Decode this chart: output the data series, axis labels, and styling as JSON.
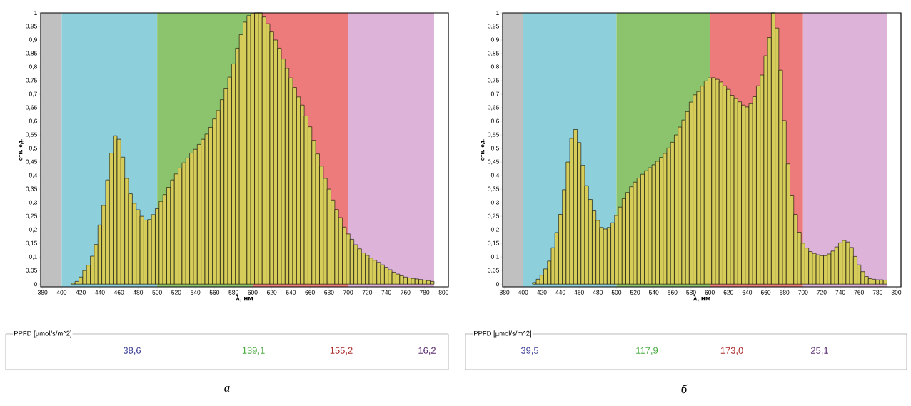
{
  "chart_data": [
    {
      "type": "histogram",
      "xlabel": "λ, нм",
      "ylabel": "отн. ед.",
      "color": "#d6cc5a",
      "bins": [
        378,
        382,
        386,
        390,
        394,
        398,
        402,
        406,
        410,
        414,
        418,
        422,
        426,
        430,
        434,
        438,
        442,
        446,
        450,
        454,
        458,
        462,
        466,
        470,
        474,
        478,
        482,
        486,
        490,
        494,
        498,
        502,
        506,
        510,
        514,
        518,
        522,
        526,
        530,
        534,
        538,
        542,
        546,
        550,
        554,
        558,
        562,
        566,
        570,
        574,
        578,
        582,
        586,
        590,
        594,
        598,
        602,
        606,
        610,
        614,
        618,
        622,
        626,
        630,
        634,
        638,
        642,
        646,
        650,
        654,
        658,
        662,
        666,
        670,
        674,
        678,
        682,
        686,
        690,
        694,
        698,
        702,
        706,
        710,
        714,
        718,
        722,
        726,
        730,
        734,
        738,
        742,
        746,
        750,
        754,
        758,
        762,
        766,
        770,
        774,
        778,
        782,
        786,
        790
      ],
      "values": [
        0,
        0,
        0,
        0,
        0,
        0,
        0,
        0,
        0.004,
        0.01,
        0.026,
        0.05,
        0.07,
        0.103,
        0.146,
        0.218,
        0.29,
        0.384,
        0.483,
        0.547,
        0.534,
        0.468,
        0.39,
        0.333,
        0.298,
        0.274,
        0.25,
        0.236,
        0.238,
        0.256,
        0.278,
        0.305,
        0.33,
        0.357,
        0.384,
        0.406,
        0.428,
        0.447,
        0.465,
        0.483,
        0.497,
        0.515,
        0.534,
        0.553,
        0.578,
        0.609,
        0.64,
        0.68,
        0.72,
        0.763,
        0.812,
        0.87,
        0.92,
        0.966,
        0.99,
        0.997,
        1.0,
        1.0,
        0.985,
        0.96,
        0.93,
        0.9,
        0.87,
        0.83,
        0.795,
        0.76,
        0.725,
        0.69,
        0.66,
        0.62,
        0.58,
        0.53,
        0.48,
        0.435,
        0.39,
        0.35,
        0.31,
        0.275,
        0.245,
        0.21,
        0.185,
        0.165,
        0.145,
        0.13,
        0.115,
        0.106,
        0.096,
        0.088,
        0.08,
        0.071,
        0.062,
        0.053,
        0.044,
        0.037,
        0.031,
        0.026,
        0.023,
        0.021,
        0.019,
        0.017,
        0.015,
        0.013,
        0.01
      ],
      "bands": [
        {
          "axis": "x",
          "from": 378,
          "to": 400,
          "color": "#c0c0c0"
        },
        {
          "axis": "x",
          "from": 400,
          "to": 500,
          "color": "#8ecfdc"
        },
        {
          "axis": "x",
          "from": 500,
          "to": 600,
          "color": "#8cc46e"
        },
        {
          "axis": "x",
          "from": 600,
          "to": 700,
          "color": "#ee7b7b"
        },
        {
          "axis": "x",
          "from": 700,
          "to": 790,
          "color": "#ddb3d9"
        }
      ],
      "xlim": [
        378,
        805
      ],
      "ylim": [
        -0.01,
        1
      ],
      "xticks": [
        380,
        400,
        420,
        440,
        460,
        480,
        500,
        520,
        540,
        560,
        580,
        600,
        620,
        640,
        660,
        680,
        700,
        720,
        740,
        760,
        780,
        800
      ],
      "yticks": [
        0,
        {
          "value": 0.05,
          "label": "0,05"
        },
        {
          "value": 0.1,
          "label": "0,1"
        },
        {
          "value": 0.15,
          "label": "0,15"
        },
        {
          "value": 0.2,
          "label": "0,2"
        },
        {
          "value": 0.25,
          "label": "0,25"
        },
        {
          "value": 0.3,
          "label": "0,3"
        },
        {
          "value": 0.35,
          "label": "0,35"
        },
        {
          "value": 0.4,
          "label": "0,4"
        },
        {
          "value": 0.45,
          "label": "0,45"
        },
        {
          "value": 0.5,
          "label": "0,5"
        },
        {
          "value": 0.55,
          "label": "0,55"
        },
        {
          "value": 0.6,
          "label": "0,6"
        },
        {
          "value": 0.65,
          "label": "0,65"
        },
        {
          "value": 0.7,
          "label": "0,7"
        },
        {
          "value": 0.75,
          "label": "0,75"
        },
        {
          "value": 0.8,
          "label": "0,8"
        },
        {
          "value": 0.85,
          "label": "0,85"
        },
        {
          "value": 0.9,
          "label": "0,9"
        },
        {
          "value": 0.95,
          "label": "0,95"
        },
        1
      ],
      "annotations": [
        "PPFD [µmol/s/m^2]",
        "38,6",
        "139,1",
        "155,2",
        "16,2",
        "а"
      ]
    },
    {
      "type": "histogram",
      "xlabel": "λ, нм",
      "ylabel": "отн. ед.",
      "color": "#d6cc5a",
      "bins": [
        378,
        382,
        386,
        390,
        394,
        398,
        402,
        406,
        410,
        414,
        418,
        422,
        426,
        430,
        434,
        438,
        442,
        446,
        450,
        454,
        458,
        462,
        466,
        470,
        474,
        478,
        482,
        486,
        490,
        494,
        498,
        502,
        506,
        510,
        514,
        518,
        522,
        526,
        530,
        534,
        538,
        542,
        546,
        550,
        554,
        558,
        562,
        566,
        570,
        574,
        578,
        582,
        586,
        590,
        594,
        598,
        602,
        606,
        610,
        614,
        618,
        622,
        626,
        630,
        634,
        638,
        642,
        646,
        650,
        654,
        658,
        662,
        666,
        670,
        674,
        678,
        682,
        686,
        690,
        694,
        698,
        702,
        706,
        710,
        714,
        718,
        722,
        726,
        730,
        734,
        738,
        742,
        746,
        750,
        754,
        758,
        762,
        766,
        770,
        774,
        778,
        782,
        786,
        790
      ],
      "values": [
        0,
        0,
        0,
        0,
        0,
        0,
        0,
        0,
        0.006,
        0.018,
        0.033,
        0.056,
        0.085,
        0.134,
        0.19,
        0.257,
        0.348,
        0.45,
        0.537,
        0.57,
        0.522,
        0.438,
        0.363,
        0.312,
        0.27,
        0.235,
        0.209,
        0.203,
        0.209,
        0.226,
        0.253,
        0.284,
        0.315,
        0.338,
        0.359,
        0.376,
        0.391,
        0.405,
        0.418,
        0.429,
        0.44,
        0.453,
        0.467,
        0.482,
        0.502,
        0.523,
        0.55,
        0.579,
        0.605,
        0.636,
        0.671,
        0.698,
        0.71,
        0.73,
        0.749,
        0.76,
        0.761,
        0.755,
        0.745,
        0.731,
        0.718,
        0.696,
        0.684,
        0.672,
        0.66,
        0.653,
        0.665,
        0.691,
        0.731,
        0.771,
        0.842,
        0.909,
        1.0,
        0.944,
        0.789,
        0.603,
        0.443,
        0.328,
        0.257,
        0.191,
        0.151,
        0.133,
        0.12,
        0.113,
        0.108,
        0.105,
        0.105,
        0.111,
        0.122,
        0.137,
        0.152,
        0.161,
        0.155,
        0.135,
        0.102,
        0.071,
        0.046,
        0.028,
        0.02,
        0.018,
        0.016,
        0.016,
        0.015
      ],
      "bands": [
        {
          "axis": "x",
          "from": 378,
          "to": 400,
          "color": "#c0c0c0"
        },
        {
          "axis": "x",
          "from": 400,
          "to": 500,
          "color": "#8ecfdc"
        },
        {
          "axis": "x",
          "from": 500,
          "to": 600,
          "color": "#8cc46e"
        },
        {
          "axis": "x",
          "from": 600,
          "to": 700,
          "color": "#ee7b7b"
        },
        {
          "axis": "x",
          "from": 700,
          "to": 790,
          "color": "#ddb3d9"
        }
      ],
      "xlim": [
        378,
        805
      ],
      "ylim": [
        -0.01,
        1
      ],
      "xticks": [
        380,
        400,
        420,
        440,
        460,
        480,
        500,
        520,
        540,
        560,
        580,
        600,
        620,
        640,
        660,
        680,
        700,
        720,
        740,
        760,
        780,
        800
      ],
      "yticks": [
        0,
        {
          "value": 0.05,
          "label": "0,05"
        },
        {
          "value": 0.1,
          "label": "0,1"
        },
        {
          "value": 0.15,
          "label": "0,15"
        },
        {
          "value": 0.2,
          "label": "0,2"
        },
        {
          "value": 0.25,
          "label": "0,25"
        },
        {
          "value": 0.3,
          "label": "0,3"
        },
        {
          "value": 0.35,
          "label": "0,35"
        },
        {
          "value": 0.4,
          "label": "0,4"
        },
        {
          "value": 0.45,
          "label": "0,45"
        },
        {
          "value": 0.5,
          "label": "0,5"
        },
        {
          "value": 0.55,
          "label": "0,55"
        },
        {
          "value": 0.6,
          "label": "0,6"
        },
        {
          "value": 0.65,
          "label": "0,65"
        },
        {
          "value": 0.7,
          "label": "0,7"
        },
        {
          "value": 0.75,
          "label": "0,75"
        },
        {
          "value": 0.8,
          "label": "0,8"
        },
        {
          "value": 0.85,
          "label": "0,85"
        },
        {
          "value": 0.9,
          "label": "0,9"
        },
        {
          "value": 0.95,
          "label": "0,95"
        },
        1
      ],
      "annotations": [
        "PPFD [µmol/s/m^2]",
        "39,5",
        "117,9",
        "173,0",
        "25,1",
        "б"
      ]
    }
  ]
}
